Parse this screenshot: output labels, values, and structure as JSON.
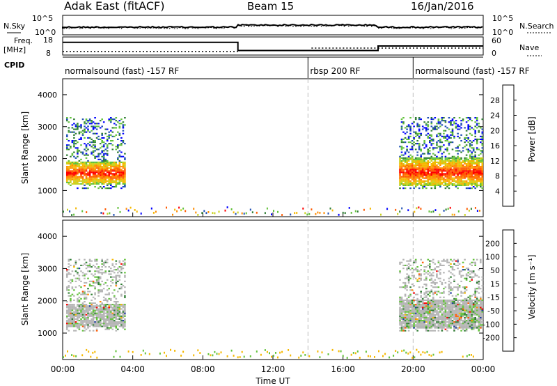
{
  "header": {
    "radar": "Adak East (fitACF)",
    "beam": "Beam 15",
    "date": "16/Jan/2016"
  },
  "strips": {
    "nsky_label": "N.Sky",
    "nsearch_label": "N.Search",
    "nsky_ticks": [
      "10^5",
      "10^0"
    ],
    "nsearch_ticks": [
      "10^5",
      "10^0"
    ],
    "freq_label_1": "Freq.",
    "freq_label_2": "[MHz]",
    "freq_ticks": [
      "18",
      "8"
    ],
    "nave_label": "Nave",
    "nave_ticks": [
      "60",
      "0"
    ],
    "cpid_label": "CPID",
    "cpid_segments": [
      {
        "label": "normalsound (fast) -157 RF",
        "start_h": 0,
        "end_h": 14
      },
      {
        "label": "rbsp 200 RF",
        "start_h": 14,
        "end_h": 20
      },
      {
        "label": "normalsound (fast) -157 RF",
        "start_h": 20,
        "end_h": 24
      }
    ],
    "freq_steps": [
      {
        "start_h": 0,
        "end_h": 10,
        "mhz": 15
      },
      {
        "start_h": 10,
        "end_h": 18,
        "mhz": 10.5
      },
      {
        "start_h": 18,
        "end_h": 24,
        "mhz": 13
      }
    ]
  },
  "chart_data": [
    {
      "type": "heatmap",
      "name": "power",
      "ylabel": "Slant Range [km]",
      "yticks": [
        "4000",
        "3000",
        "2000",
        "1000"
      ],
      "ylim": [
        180,
        4500
      ],
      "xlim": [
        0,
        24
      ],
      "colorbar": {
        "label": "Power [dB]",
        "ticks": [
          "28",
          "24",
          "20",
          "16",
          "12",
          "8",
          "4"
        ],
        "colors": [
          "#0000ff",
          "#1e4fb4",
          "#2e7d32",
          "#62c23a",
          "#c8d21e",
          "#f5b800",
          "#ff8c00",
          "#ff5a00",
          "#ff0000"
        ]
      },
      "regions": [
        {
          "t0": 0.2,
          "t1": 3.6,
          "r0": 1050,
          "r1": 3300,
          "core_r0": 1150,
          "core_r1": 1900
        },
        {
          "t0": 19.2,
          "t1": 24,
          "r0": 1050,
          "r1": 3300,
          "core_r0": 1100,
          "core_r1": 2000
        }
      ]
    },
    {
      "type": "heatmap",
      "name": "velocity",
      "ylabel": "Slant Range [km]",
      "yticks": [
        "4000",
        "3000",
        "2000",
        "1000"
      ],
      "ylim": [
        180,
        4500
      ],
      "xlim": [
        0,
        24
      ],
      "xticks": [
        "00:00",
        "04:00",
        "08:00",
        "12:00",
        "16:00",
        "20:00",
        "00:00"
      ],
      "xlabel": "Time UT",
      "colorbar": {
        "label": "Velocity [m s⁻¹]",
        "ticks": [
          "200",
          "100",
          "50",
          "15",
          "-15",
          "-50",
          "-100",
          "-200"
        ],
        "colors": [
          "#1e3ca0",
          "#2e7d32",
          "#62c23a",
          "#b4b4b4",
          "#f5b800",
          "#ff8c00",
          "#ff5a00",
          "#ff0000"
        ]
      }
    }
  ]
}
